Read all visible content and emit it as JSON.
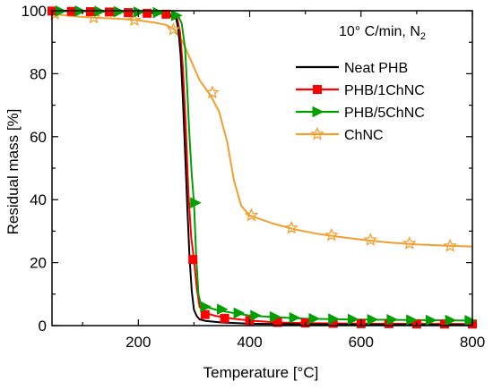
{
  "chart_data": {
    "type": "line",
    "annotation": "10° C/min, N",
    "annotation_sub": "2",
    "xlabel": "Temperature [°C]",
    "ylabel": "Residual mass [%]",
    "xlim": [
      45,
      800
    ],
    "ylim": [
      0,
      100
    ],
    "xticks": [
      200,
      400,
      600,
      800
    ],
    "yticks": [
      0,
      20,
      40,
      60,
      80,
      100
    ],
    "legend_position": "right, upper-middle",
    "grid": false,
    "series": [
      {
        "name": "Neat PHB",
        "color": "#000000",
        "marker": "none",
        "x": [
          45,
          100,
          200,
          250,
          268,
          272,
          276,
          280,
          284,
          288,
          292,
          296,
          300,
          305,
          310,
          320,
          350,
          400,
          500,
          600,
          800
        ],
        "y": [
          100,
          99.9,
          99.6,
          99.0,
          97.5,
          94,
          86,
          72,
          55,
          38,
          22,
          11,
          5,
          3,
          2,
          1.5,
          1.0,
          0.6,
          0.4,
          0.3,
          0.2
        ],
        "markers_x": [],
        "markers_y": []
      },
      {
        "name": "PHB/1ChNC",
        "color": "#ff0000",
        "marker": "square",
        "x": [
          45,
          100,
          200,
          250,
          270,
          275,
          280,
          285,
          290,
          295,
          300,
          305,
          310,
          320,
          340,
          370,
          400,
          450,
          500,
          600,
          800
        ],
        "y": [
          100,
          99.9,
          99.6,
          99.0,
          97.5,
          93,
          82,
          64,
          42,
          28,
          21,
          12,
          6,
          4,
          3,
          2.2,
          1.6,
          1.0,
          0.8,
          0.6,
          0.5
        ],
        "markers_x": [
          45,
          80,
          114,
          148,
          182,
          216,
          250,
          298,
          320,
          355,
          400,
          450,
          500,
          550,
          600,
          650,
          700,
          750,
          800
        ],
        "markers_y": [
          99.9,
          99.8,
          99.7,
          99.6,
          99.4,
          99.2,
          98.9,
          21,
          3.5,
          2.3,
          1.6,
          1.0,
          0.8,
          0.7,
          0.6,
          0.6,
          0.5,
          0.5,
          0.5
        ]
      },
      {
        "name": "PHB/5ChNC",
        "color": "#00a000",
        "marker": "triangle-right",
        "x": [
          45,
          100,
          200,
          250,
          272,
          278,
          284,
          288,
          292,
          296,
          300,
          304,
          308,
          312,
          320,
          340,
          370,
          400,
          450,
          500,
          600,
          800
        ],
        "y": [
          100,
          99.9,
          99.7,
          99.2,
          98.3,
          96,
          88,
          75,
          60,
          48,
          39,
          22,
          10,
          7,
          6,
          5,
          4,
          3.2,
          2.6,
          2.2,
          1.9,
          1.6
        ],
        "markers_x": [
          60,
          95,
          130,
          165,
          200,
          235,
          268,
          302,
          320,
          350,
          380,
          410,
          445,
          480,
          515,
          550,
          585,
          620,
          655,
          690,
          725,
          760,
          795
        ],
        "markers_y": [
          99.9,
          99.9,
          99.8,
          99.7,
          99.6,
          99.4,
          98.5,
          39,
          6,
          5.2,
          4.0,
          3.2,
          2.8,
          2.5,
          2.2,
          2.1,
          2.0,
          1.9,
          1.9,
          1.8,
          1.7,
          1.7,
          1.6
        ]
      },
      {
        "name": "ChNC",
        "color": "#f0a030",
        "marker": "star",
        "x": [
          45,
          80,
          120,
          160,
          200,
          230,
          250,
          265,
          280,
          295,
          310,
          330,
          345,
          360,
          372,
          385,
          400,
          440,
          480,
          520,
          560,
          600,
          650,
          700,
          750,
          800
        ],
        "y": [
          99.0,
          98.3,
          97.8,
          97.5,
          97.0,
          96.2,
          95.5,
          94,
          90,
          84,
          78,
          73,
          68,
          58,
          46,
          38,
          35,
          32.5,
          30.6,
          29.2,
          28.2,
          27.3,
          26.4,
          25.8,
          25.4,
          25.1
        ],
        "markers_x": [
          50,
          120,
          193,
          263,
          333,
          403,
          475,
          547,
          617,
          687,
          760
        ],
        "markers_y": [
          99.0,
          97.8,
          97.0,
          94.0,
          74.0,
          35.0,
          31.0,
          28.7,
          27.2,
          26.1,
          25.3
        ]
      }
    ]
  }
}
